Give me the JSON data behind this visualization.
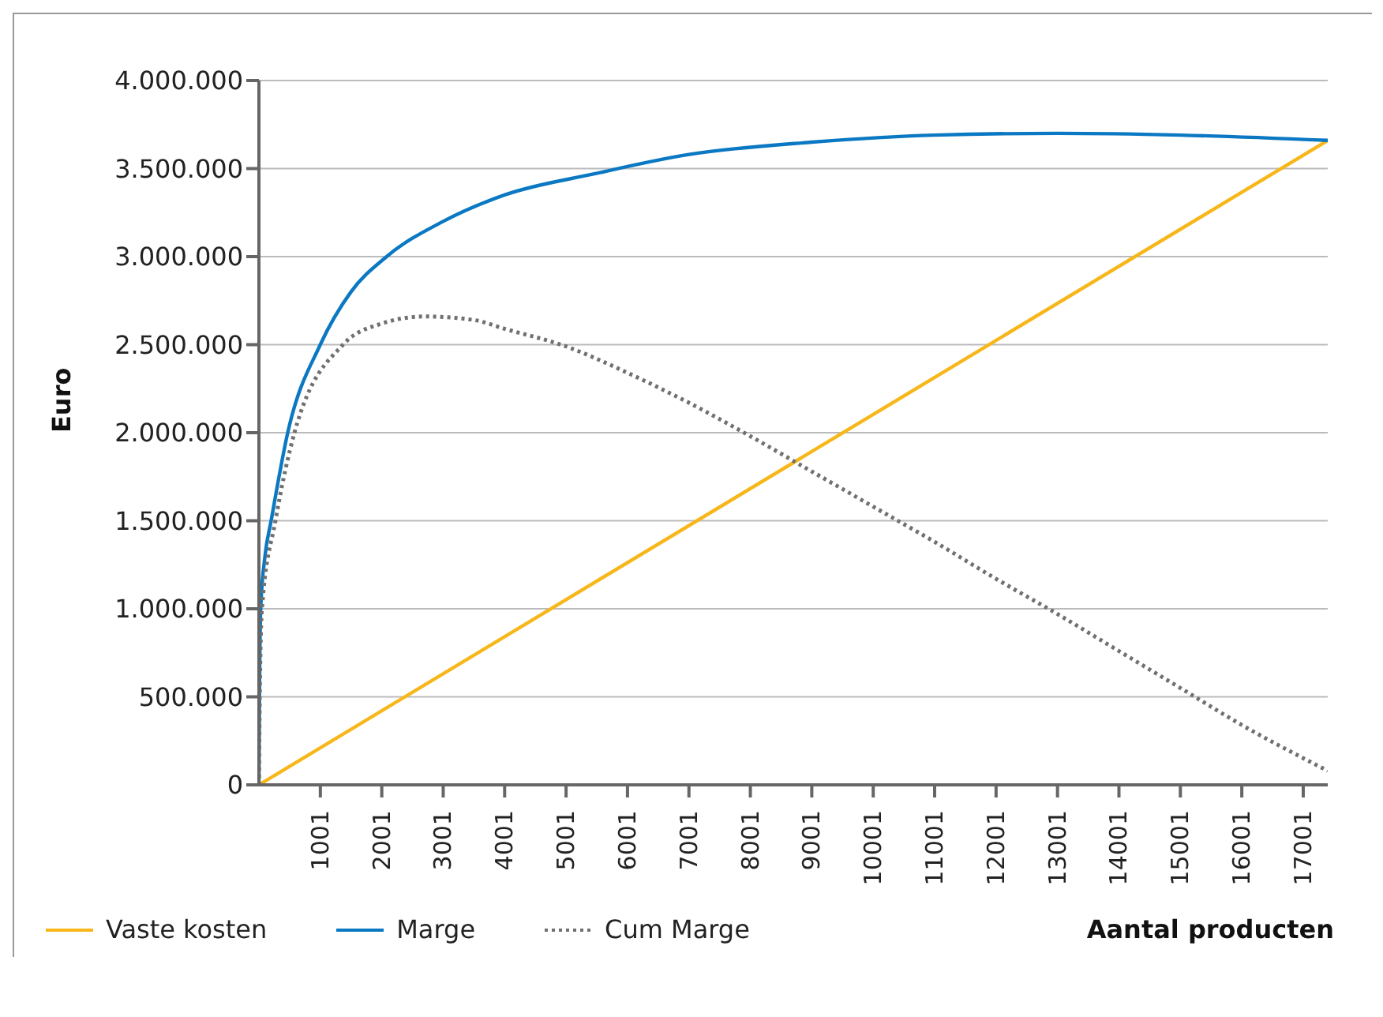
{
  "chart_data": {
    "type": "line",
    "xlabel": "Aantal producten",
    "ylabel": "Euro",
    "xlim": [
      1,
      17400
    ],
    "xticks": [
      1001,
      2001,
      3001,
      4001,
      5001,
      6001,
      7001,
      8001,
      9001,
      10001,
      11001,
      12001,
      13001,
      14001,
      15001,
      16001,
      17001
    ],
    "ylim": [
      0,
      4000000
    ],
    "yticks": [
      {
        "value": 0,
        "label": "0"
      },
      {
        "value": 500000,
        "label": "500.000"
      },
      {
        "value": 1000000,
        "label": "1.000.000"
      },
      {
        "value": 1500000,
        "label": "1.500.000"
      },
      {
        "value": 2000000,
        "label": "2.000.000"
      },
      {
        "value": 2500000,
        "label": "2.500.000"
      },
      {
        "value": 3000000,
        "label": "3.000.000"
      },
      {
        "value": 3500000,
        "label": "3.500.000"
      },
      {
        "value": 4000000,
        "label": "4.000.000"
      }
    ],
    "grid": "y",
    "legend": "bottom",
    "marker": "none",
    "series": [
      {
        "name": "Vaste kosten",
        "color": "#f7b71b",
        "line_style": "solid",
        "x": [
          1,
          17400
        ],
        "values": [
          0,
          3660000
        ]
      },
      {
        "name": "Marge",
        "color": "#0a78c2",
        "line_style": "solid",
        "x": [
          1,
          10,
          30,
          100,
          200,
          470,
          1000,
          1500,
          2080,
          3000,
          4000,
          5460,
          7000,
          9000,
          11000,
          13000,
          15000,
          17400
        ],
        "values": [
          0,
          500000,
          1000000,
          1300000,
          1500000,
          2000000,
          2500000,
          2800000,
          3000000,
          3200000,
          3350000,
          3470000,
          3580000,
          3650000,
          3690000,
          3700000,
          3690000,
          3660000
        ]
      },
      {
        "name": "Cum Marge",
        "color": "#707070",
        "line_style": "dotted",
        "x": [
          1,
          15,
          50,
          270,
          580,
          1370,
          2000,
          2700,
          3500,
          4001,
          5001,
          6001,
          7001,
          8001,
          9001,
          10001,
          11001,
          12001,
          13001,
          14001,
          15001,
          16001,
          17400
        ],
        "values": [
          0,
          500000,
          1000000,
          1500000,
          2000000,
          2500000,
          2620000,
          2660000,
          2640000,
          2590000,
          2490000,
          2340000,
          2170000,
          1980000,
          1780000,
          1580000,
          1380000,
          1170000,
          970000,
          760000,
          550000,
          340000,
          80000
        ]
      }
    ]
  }
}
